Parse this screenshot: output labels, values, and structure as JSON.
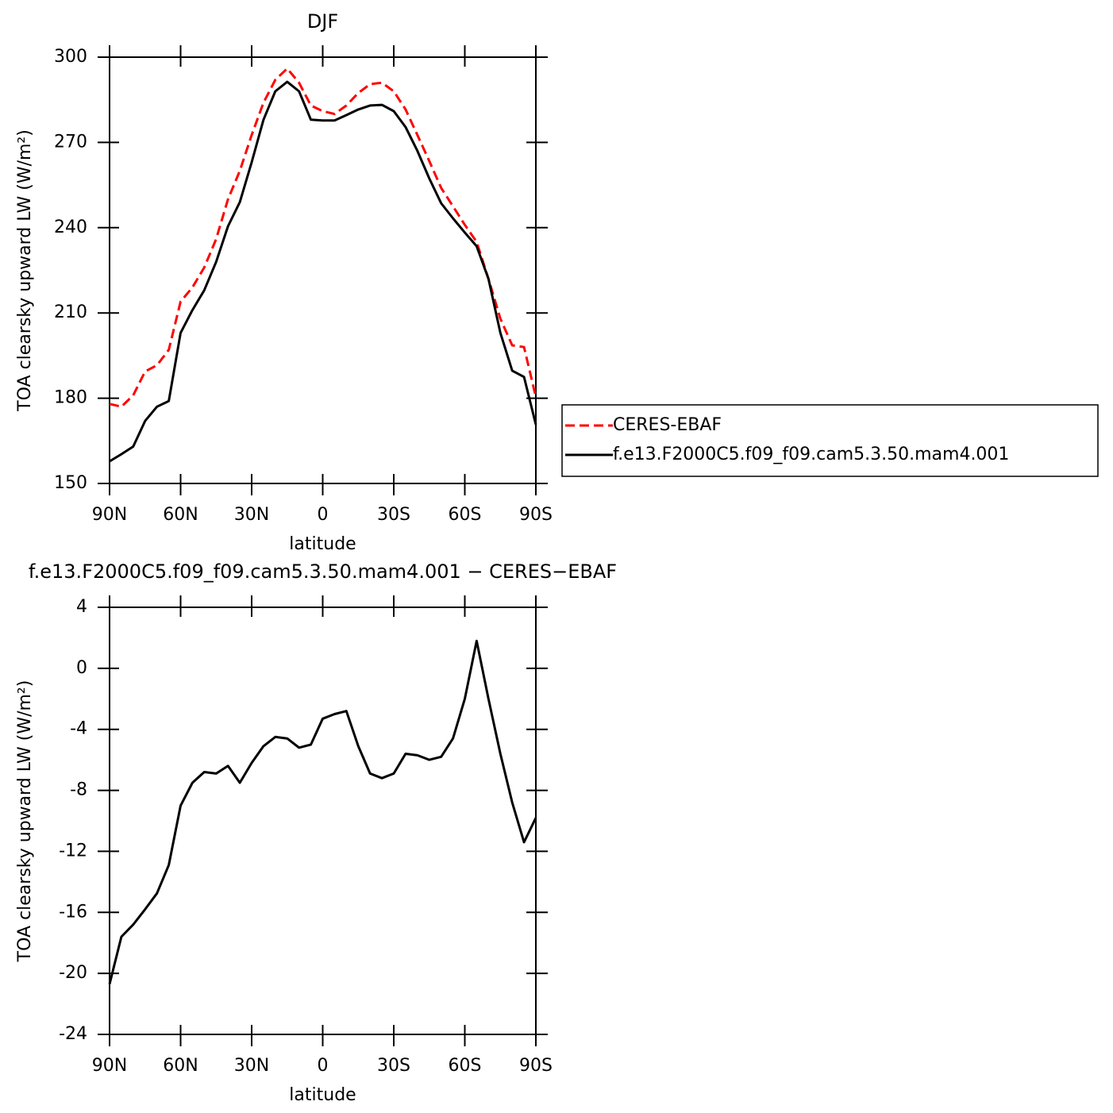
{
  "chart_data": [
    {
      "type": "line",
      "title": "DJF",
      "xlabel": "latitude",
      "ylabel": "TOA clearsky upward LW (W/m²)",
      "x": [
        90,
        85,
        80,
        75,
        70,
        65,
        60,
        55,
        50,
        45,
        40,
        35,
        30,
        25,
        20,
        15,
        10,
        5,
        0,
        -5,
        -10,
        -15,
        -20,
        -25,
        -30,
        -35,
        -40,
        -45,
        -50,
        -55,
        -60,
        -65,
        -70,
        -75,
        -80,
        -85,
        -90
      ],
      "xlim": [
        90,
        -90
      ],
      "xticks": [
        {
          "value": 90,
          "label": "90N"
        },
        {
          "value": 60,
          "label": "60N"
        },
        {
          "value": 30,
          "label": "30N"
        },
        0,
        {
          "value": -30,
          "label": "30S"
        },
        {
          "value": -60,
          "label": "60S"
        },
        {
          "value": -90,
          "label": "90S"
        }
      ],
      "ylim": [
        150,
        300
      ],
      "yticks": [
        150,
        180,
        210,
        240,
        270,
        300
      ],
      "legend": "right",
      "series": [
        {
          "name": "CERES-EBAF",
          "color": "#ff0000",
          "line_style": "dashed",
          "values": [
            178,
            177,
            181,
            189.4,
            191.6,
            197,
            214,
            219,
            226,
            236,
            250,
            260,
            272.6,
            284,
            292,
            296,
            291,
            283,
            281,
            280,
            283,
            287.4,
            290.5,
            291,
            288,
            281.6,
            272.6,
            263.4,
            254,
            247.5,
            241,
            235,
            222,
            208,
            198.6,
            198,
            180.4
          ]
        },
        {
          "name": "f.e13.F2000C5.f09_f09.cam5.3.50.mam4.001",
          "color": "#000000",
          "line_style": "solid",
          "values": [
            157.8,
            160.3,
            163,
            172,
            177,
            179,
            203,
            211,
            218,
            228,
            240.5,
            249,
            263,
            278,
            288,
            291.3,
            288,
            278,
            277.7,
            277.7,
            279.6,
            281.6,
            283,
            283.2,
            281,
            275.4,
            267,
            257.3,
            248.6,
            243.3,
            238.3,
            233.5,
            222,
            203,
            189.7,
            187.5,
            170.7
          ]
        }
      ]
    },
    {
      "type": "line",
      "title": "f.e13.F2000C5.f09_f09.cam5.3.50.mam4.001 − CERES−EBAF",
      "xlabel": "latitude",
      "ylabel": "TOA clearsky upward LW (W/m²)",
      "x": [
        90,
        85,
        80,
        75,
        70,
        65,
        60,
        55,
        50,
        45,
        40,
        35,
        30,
        25,
        20,
        15,
        10,
        5,
        0,
        -5,
        -10,
        -15,
        -20,
        -25,
        -30,
        -35,
        -40,
        -45,
        -50,
        -55,
        -60,
        -65,
        -70,
        -75,
        -80,
        -85,
        -90
      ],
      "xlim": [
        90,
        -90
      ],
      "xticks": [
        {
          "value": 90,
          "label": "90N"
        },
        {
          "value": 60,
          "label": "60N"
        },
        {
          "value": 30,
          "label": "30N"
        },
        0,
        {
          "value": -30,
          "label": "30S"
        },
        {
          "value": -60,
          "label": "60S"
        },
        {
          "value": -90,
          "label": "90S"
        }
      ],
      "ylim": [
        -24,
        4
      ],
      "yticks": [
        -24,
        -20,
        -16,
        -12,
        -8,
        -4,
        0,
        4
      ],
      "color": "#000000",
      "values": [
        -20.7,
        -17.6,
        -16.8,
        -15.8,
        -14.75,
        -12.9,
        -9,
        -7.5,
        -6.8,
        -6.9,
        -6.4,
        -7.5,
        -6.2,
        -5.1,
        -4.5,
        -4.6,
        -5.2,
        -5,
        -3.3,
        -3,
        -2.8,
        -5.1,
        -6.9,
        -7.2,
        -6.9,
        -5.6,
        -5.7,
        -6,
        -5.8,
        -4.6,
        -2,
        1.8,
        -2,
        -5.6,
        -8.8,
        -11.4,
        -9.8
      ]
    }
  ]
}
